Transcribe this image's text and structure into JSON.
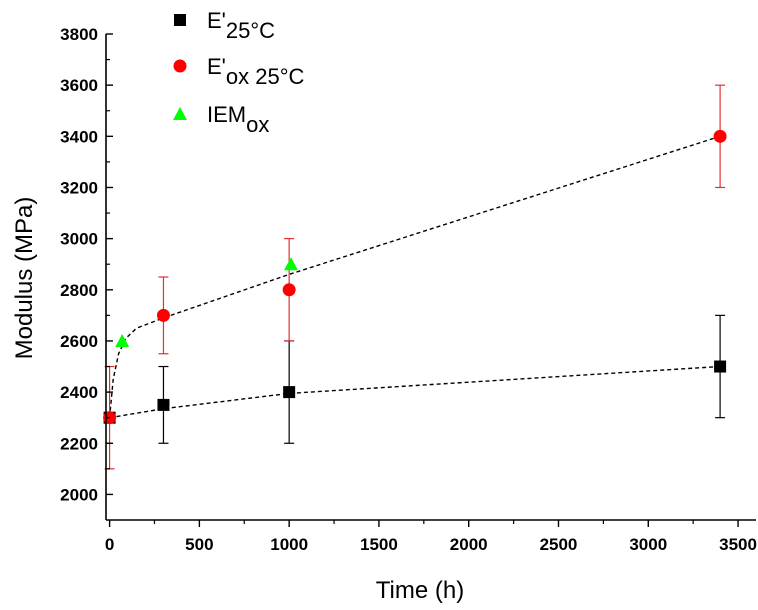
{
  "chart_data": {
    "type": "scatter",
    "xlabel": "Time (h)",
    "ylabel": "Modulus (MPa)",
    "xlim": [
      -20,
      3600
    ],
    "ylim": [
      1900,
      3800
    ],
    "x_ticks": [
      0,
      500,
      1000,
      1500,
      2000,
      2500,
      3000,
      3500
    ],
    "y_ticks": [
      2000,
      2200,
      2400,
      2600,
      2800,
      3000,
      3200,
      3400,
      3600,
      3800
    ],
    "legend_position": "top-left",
    "grid": false,
    "series": [
      {
        "name_main": "E'",
        "name_sub": "25°C",
        "marker": "square",
        "color": "#000000",
        "error_color": "#000000",
        "points": [
          {
            "x": 0,
            "y": 2300,
            "err": 0
          },
          {
            "x": 300,
            "y": 2350,
            "err": 150
          },
          {
            "x": 1000,
            "y": 2400,
            "err": 200
          },
          {
            "x": 3400,
            "y": 2500,
            "err": 200
          }
        ]
      },
      {
        "name_main": "E'",
        "name_sub": "ox 25°C",
        "marker": "circle",
        "color": "#ff0000",
        "error_color": "#e03030",
        "points": [
          {
            "x": 0,
            "y": 2300,
            "err": 200
          },
          {
            "x": 300,
            "y": 2700,
            "err": 150
          },
          {
            "x": 1000,
            "y": 2800,
            "err": 200
          },
          {
            "x": 3400,
            "y": 3400,
            "err": 200
          }
        ]
      },
      {
        "name_main": "IEM",
        "name_sub": "ox",
        "marker": "triangle",
        "color": "#00ff00",
        "points": [
          {
            "x": 70,
            "y": 2600
          },
          {
            "x": 1010,
            "y": 2900
          }
        ]
      }
    ],
    "fit_lines": [
      {
        "style": "dashed",
        "color": "#000000",
        "points": [
          [
            0,
            2300
          ],
          [
            300,
            2335
          ],
          [
            1000,
            2395
          ],
          [
            3400,
            2500
          ]
        ]
      },
      {
        "style": "dashed",
        "color": "#000000",
        "points": [
          [
            0,
            2300
          ],
          [
            20,
            2450
          ],
          [
            50,
            2550
          ],
          [
            90,
            2610
          ],
          [
            150,
            2650
          ],
          [
            300,
            2690
          ],
          [
            1000,
            2860
          ],
          [
            3400,
            3400
          ]
        ]
      }
    ]
  }
}
